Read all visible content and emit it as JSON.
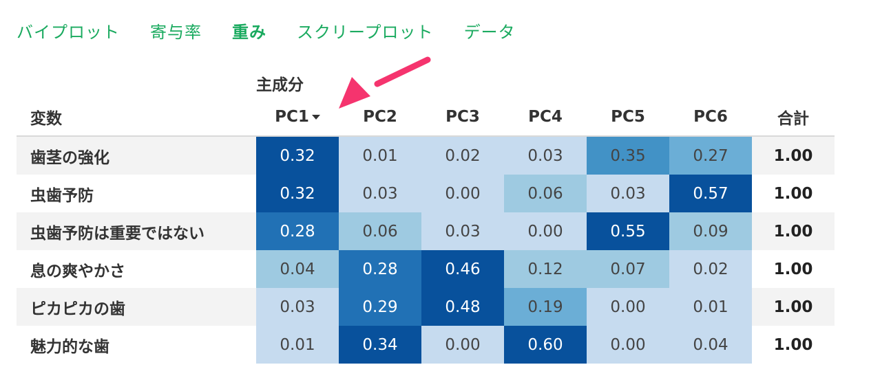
{
  "tabs": [
    {
      "label": "バイプロット",
      "active": false
    },
    {
      "label": "寄与率",
      "active": false
    },
    {
      "label": "重み",
      "active": true
    },
    {
      "label": "スクリープロット",
      "active": false
    },
    {
      "label": "データ",
      "active": false
    }
  ],
  "colors": {
    "tab": "#1aaa5f",
    "annotation_arrow": "#f5346e",
    "cell_scale": [
      "#c6dbef",
      "#9ecae1",
      "#6baed6",
      "#4292c6",
      "#2171b5",
      "#08519c"
    ]
  },
  "table": {
    "group_header": "主成分",
    "variable_header": "変数",
    "columns": [
      "PC1",
      "PC2",
      "PC3",
      "PC4",
      "PC5",
      "PC6"
    ],
    "total_header": "合計",
    "sorted_column": "PC1",
    "rows": [
      {
        "variable": "歯茎の強化",
        "values": [
          "0.32",
          "0.01",
          "0.02",
          "0.03",
          "0.35",
          "0.27"
        ],
        "total": "1.00"
      },
      {
        "variable": "虫歯予防",
        "values": [
          "0.32",
          "0.03",
          "0.00",
          "0.06",
          "0.03",
          "0.57"
        ],
        "total": "1.00"
      },
      {
        "variable": "虫歯予防は重要ではない",
        "values": [
          "0.28",
          "0.06",
          "0.03",
          "0.00",
          "0.55",
          "0.09"
        ],
        "total": "1.00"
      },
      {
        "variable": "息の爽やかさ",
        "values": [
          "0.04",
          "0.28",
          "0.46",
          "0.12",
          "0.07",
          "0.02"
        ],
        "total": "1.00"
      },
      {
        "variable": "ピカピカの歯",
        "values": [
          "0.03",
          "0.29",
          "0.48",
          "0.19",
          "0.00",
          "0.01"
        ],
        "total": "1.00"
      },
      {
        "variable": "魅力的な歯",
        "values": [
          "0.01",
          "0.34",
          "0.00",
          "0.60",
          "0.00",
          "0.04"
        ],
        "total": "1.00"
      }
    ]
  }
}
